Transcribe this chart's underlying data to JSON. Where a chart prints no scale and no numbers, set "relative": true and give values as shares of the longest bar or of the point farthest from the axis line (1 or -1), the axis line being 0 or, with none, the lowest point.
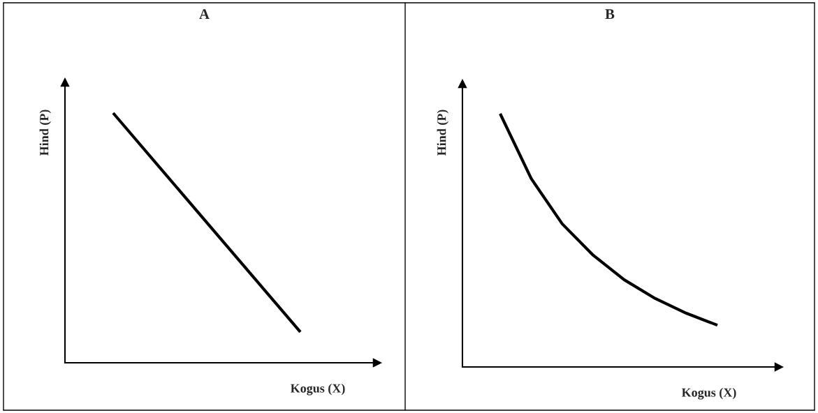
{
  "chart_data": [
    {
      "type": "line",
      "title": "A",
      "xlabel": "Kogus (X)",
      "ylabel": "Hind (P)",
      "relative": true,
      "categories": [
        null,
        null
      ],
      "series": [
        {
          "color": "#000000",
          "values": [
            1,
            0.123
          ]
        }
      ]
    },
    {
      "type": "line",
      "title": "B",
      "xlabel": "Kogus (X)",
      "ylabel": "Hind (P)",
      "relative": true,
      "categories": [
        null,
        null,
        null,
        null,
        null,
        null,
        null,
        null
      ],
      "series": [
        {
          "color": "#000000",
          "values": [
            1,
            0.744,
            0.565,
            0.441,
            0.344,
            0.27,
            0.212,
            0.165
          ]
        }
      ]
    }
  ]
}
